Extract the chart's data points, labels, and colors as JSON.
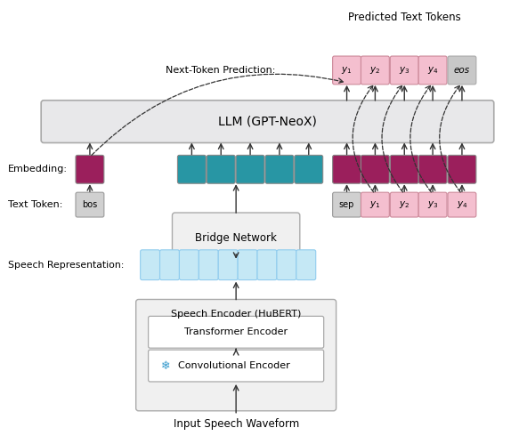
{
  "bg_color": "#ffffff",
  "colors": {
    "teal": "#2896A4",
    "crimson": "#9B1F5C",
    "light_pink": "#F4BFCF",
    "light_blue": "#C5E8F5",
    "gray_token": "#d0d0d0",
    "eos_color": "#c8c8c8",
    "box_face": "#f0f0f0",
    "box_edge": "#999999",
    "llm_face": "#e8e8ea",
    "white": "#ffffff"
  },
  "labels": {
    "embedding": "Embedding:",
    "text_token": "Text Token:",
    "speech_rep": "Speech Representation:",
    "next_token": "Next-Token Prediction:",
    "predicted": "Predicted Text Tokens",
    "input_speech": "Input Speech Waveform",
    "llm": "LLM (GPT-NeoX)",
    "speech_encoder": "Speech Encoder (HuBERT)",
    "transformer": "Transformer Encoder",
    "conv": "Convolutional Encoder",
    "bridge": "Bridge Network",
    "bos": "bos",
    "sep": "sep",
    "eos": "eos"
  }
}
